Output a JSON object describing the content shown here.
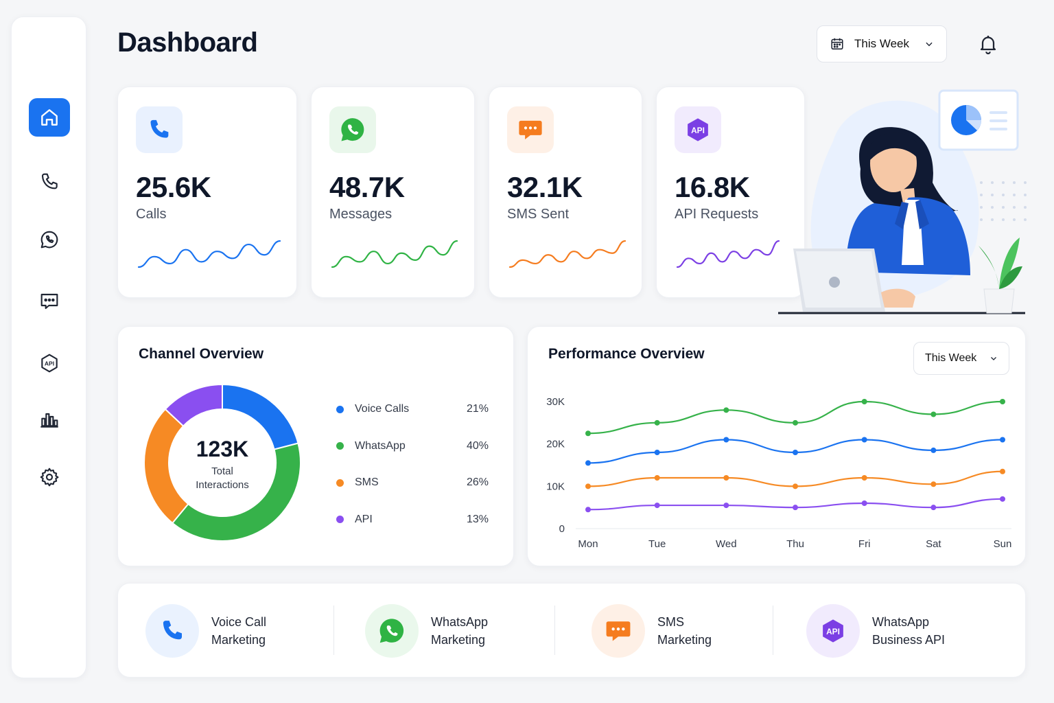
{
  "header": {
    "title": "Dashboard",
    "period_label": "This Week"
  },
  "sidebar": {
    "items": [
      {
        "name": "home",
        "icon": "home-icon",
        "active": true
      },
      {
        "name": "calls",
        "icon": "phone-icon"
      },
      {
        "name": "whatsapp",
        "icon": "whatsapp-icon"
      },
      {
        "name": "sms",
        "icon": "message-icon"
      },
      {
        "name": "api",
        "icon": "api-icon"
      },
      {
        "name": "analytics",
        "icon": "bar-chart-icon"
      },
      {
        "name": "settings",
        "icon": "gear-icon"
      }
    ]
  },
  "stats": [
    {
      "value": "25.6K",
      "label": "Calls",
      "color": "#1a73f0",
      "icon": "phone-icon",
      "trend": [
        3,
        9,
        5,
        13,
        6,
        12,
        8,
        16,
        10,
        18
      ]
    },
    {
      "value": "48.7K",
      "label": "Messages",
      "color": "#2fb344",
      "icon": "whatsapp-icon",
      "trend": [
        3,
        9,
        6,
        12,
        5,
        11,
        7,
        15,
        10,
        18
      ]
    },
    {
      "value": "32.1K",
      "label": "SMS Sent",
      "color": "#f57c1f",
      "icon": "sms-icon",
      "trend": [
        3,
        7,
        5,
        10,
        6,
        12,
        8,
        13,
        11,
        18
      ]
    },
    {
      "value": "16.8K",
      "label": "API Requests",
      "color": "#7b3fe4",
      "icon": "api-icon",
      "icon_text": "API",
      "trend": [
        3,
        8,
        5,
        11,
        6,
        12,
        8,
        13,
        10,
        18
      ]
    }
  ],
  "channel_overview": {
    "title": "Channel Overview",
    "total_value": "123K",
    "total_label": "Total\nInteractions"
  },
  "performance_overview": {
    "title": "Performance Overview",
    "period_label": "This Week"
  },
  "chart_data": [
    {
      "type": "pie",
      "title": "Channel Overview",
      "donut": true,
      "center_text": [
        "123K",
        "Total",
        "Interactions"
      ],
      "legend_position": "right",
      "slices": [
        {
          "label": "Voice Calls",
          "value": 21,
          "display": "21%",
          "color": "#1a73f0"
        },
        {
          "label": "WhatsApp",
          "value": 40,
          "display": "40%",
          "color": "#36b24a"
        },
        {
          "label": "SMS",
          "value": 26,
          "display": "26%",
          "color": "#f68a24"
        },
        {
          "label": "API",
          "value": 13,
          "display": "13%",
          "color": "#8a4ff0"
        }
      ]
    },
    {
      "type": "line",
      "title": "Performance Overview",
      "categories": [
        "Mon",
        "Tue",
        "Wed",
        "Thu",
        "Fri",
        "Sat",
        "Sun"
      ],
      "ylim": [
        0,
        30000
      ],
      "yticks": [
        0,
        10000,
        20000,
        30000
      ],
      "ytick_labels": [
        "0",
        "10K",
        "20K",
        "30K"
      ],
      "grid": false,
      "series": [
        {
          "color": "#36b24a",
          "values": [
            22500,
            25000,
            28000,
            25000,
            30000,
            27000,
            30000
          ]
        },
        {
          "color": "#1a73f0",
          "values": [
            15500,
            18000,
            21000,
            18000,
            21000,
            18500,
            21000
          ]
        },
        {
          "color": "#f68a24",
          "values": [
            10000,
            12000,
            12000,
            10000,
            12000,
            10500,
            13500
          ]
        },
        {
          "color": "#8a4ff0",
          "values": [
            4500,
            5500,
            5500,
            5000,
            6000,
            5000,
            7000
          ]
        }
      ]
    }
  ],
  "bottom_channels": [
    {
      "label": "Voice Call\nMarketing",
      "icon": "phone-icon",
      "color": "#1a73f0",
      "bg": "#eaf2fe"
    },
    {
      "label": "WhatsApp\nMarketing",
      "icon": "whatsapp-icon",
      "color": "#2fb344",
      "bg": "#eaf8ec"
    },
    {
      "label": "SMS\nMarketing",
      "icon": "sms-icon",
      "color": "#f57c1f",
      "bg": "#fef0e6"
    },
    {
      "label": "WhatsApp\nBusiness API",
      "icon": "api-icon",
      "icon_text": "API",
      "color": "#7b3fe4",
      "bg": "#f1ebfd"
    }
  ]
}
